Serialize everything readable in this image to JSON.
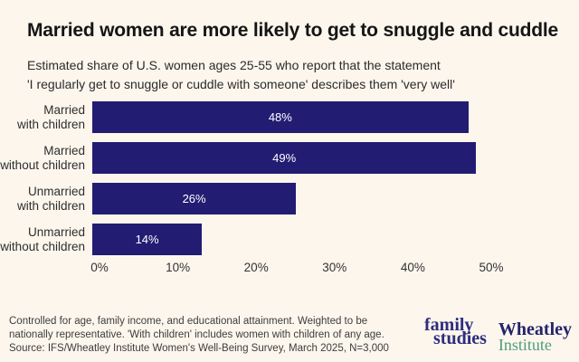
{
  "header": {
    "title": "Married women are more likely to get to snuggle and cuddle",
    "subtitle_line1": "Estimated share of U.S. women ages 25-55 who report that the statement",
    "subtitle_line2": "'I regularly get to snuggle or cuddle with someone' describes them 'very well'"
  },
  "chart_data": {
    "type": "bar",
    "orientation": "horizontal",
    "title": "Married women are more likely to get to snuggle and cuddle",
    "categories": [
      "Married with children",
      "Married without children",
      "Unmarried with children",
      "Unmarried without children"
    ],
    "category_lines": [
      [
        "Married",
        "with children"
      ],
      [
        "Married",
        "without children"
      ],
      [
        "Unmarried",
        "with children"
      ],
      [
        "Unmarried",
        "without children"
      ]
    ],
    "values": [
      48,
      49,
      26,
      14
    ],
    "value_labels": [
      "48%",
      "49%",
      "26%",
      "14%"
    ],
    "x_ticks": [
      0,
      10,
      20,
      30,
      40,
      50
    ],
    "x_tick_labels": [
      "0%",
      "10%",
      "20%",
      "30%",
      "40%",
      "50%"
    ],
    "xlim": [
      0,
      55
    ],
    "xlabel": "",
    "ylabel": "",
    "grid": false,
    "legend": false,
    "bar_color": "#221d73",
    "value_label_color": "#ffffff"
  },
  "footer": {
    "note_line1": "Controlled for age, family income, and educational attainment. Weighted to be",
    "note_line2": "nationally representative. 'With children' includes women with children of any age.",
    "note_line3": "Source: IFS/Wheatley Institute Women's Well-Being Survey, March 2025, N=3,000",
    "logos": {
      "ifs_line1": "family",
      "ifs_line2": "studies",
      "wheatley_line1": "Wheatley",
      "wheatley_line2": "Institute"
    }
  },
  "colors": {
    "background": "#fcf6ed",
    "bar": "#221d73",
    "title_text": "#151515",
    "body_text": "#2e2e2e",
    "footnote_text": "#3d3d3d",
    "ifs_navy": "#2e2d7e",
    "wheatley_navy": "#24246b",
    "wheatley_green": "#4f9d7f"
  }
}
